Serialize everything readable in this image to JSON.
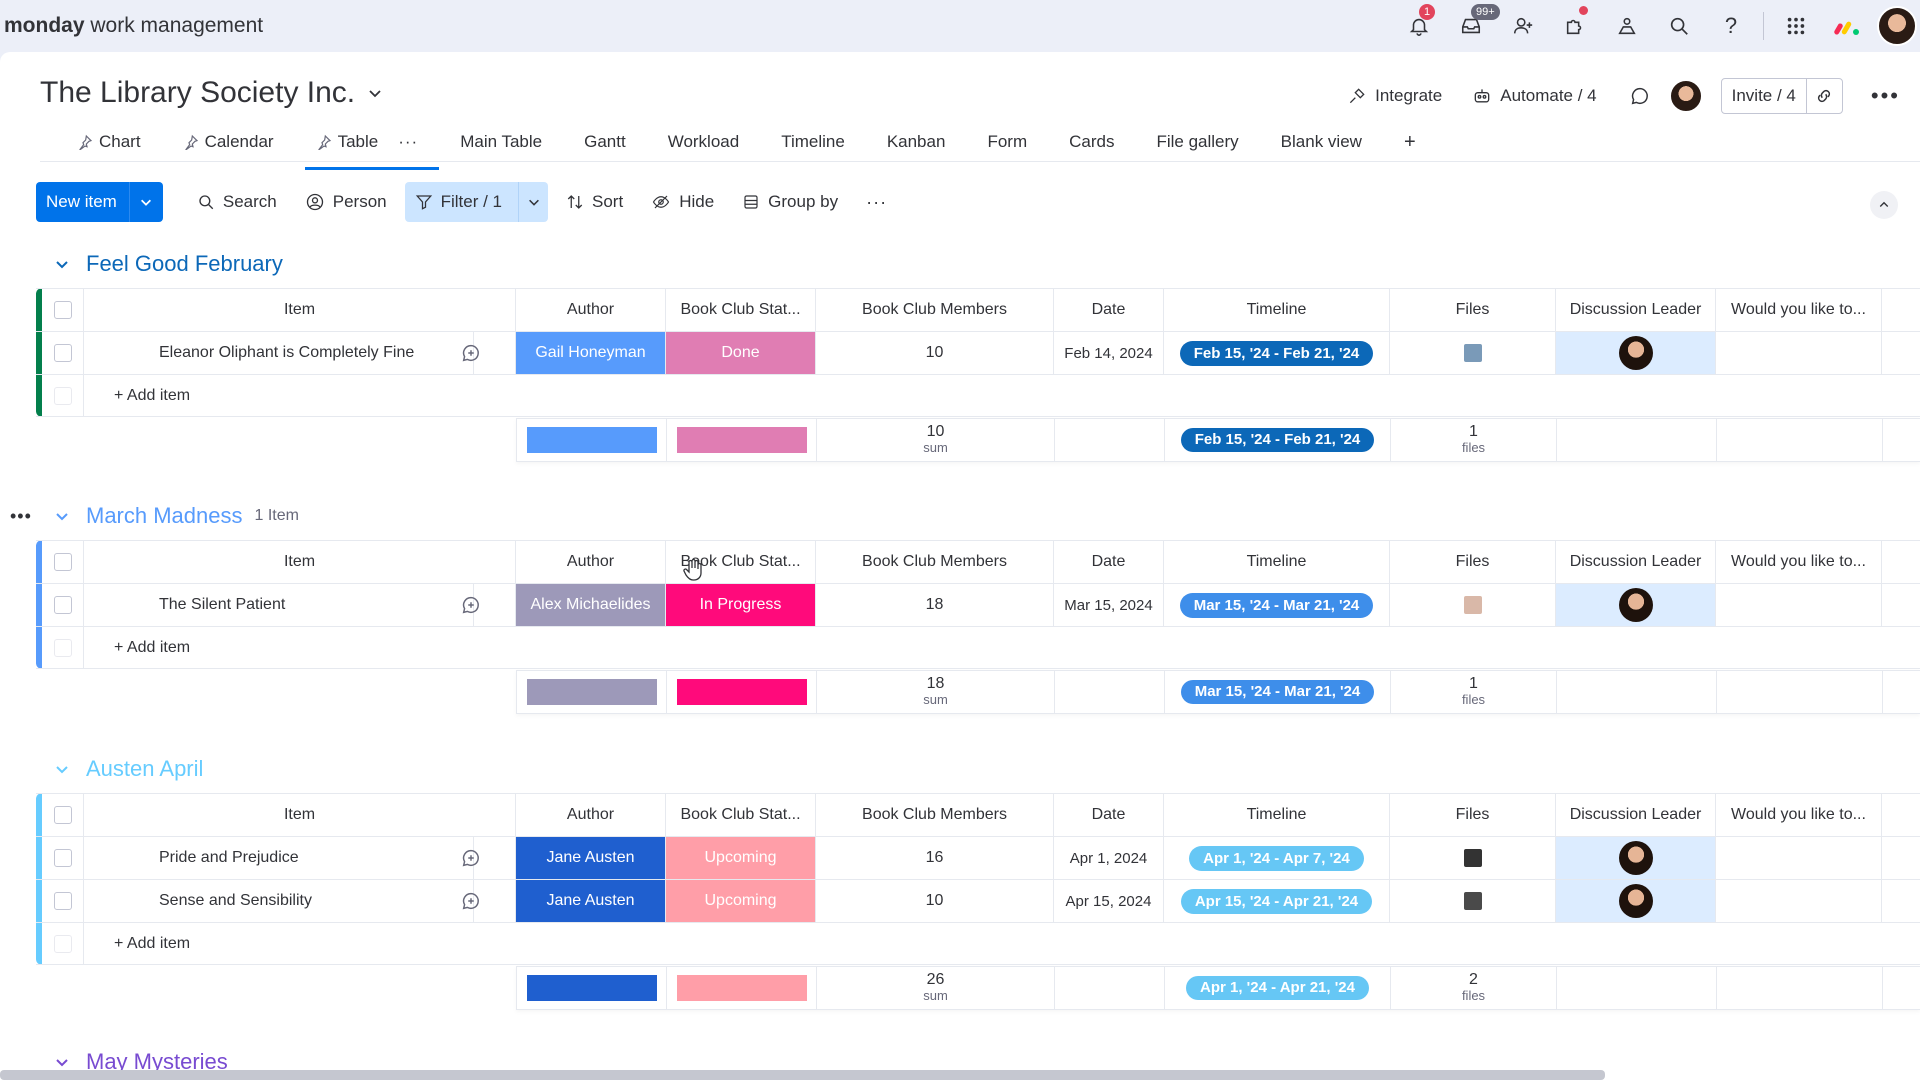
{
  "app": {
    "brand_bold": "monday",
    "brand_rest": "work management"
  },
  "topbar": {
    "notif_badge": "1",
    "inbox_badge": "99+"
  },
  "board": {
    "title": "The Library Society Inc.",
    "integrate": "Integrate",
    "automate": "Automate / 4",
    "invite": "Invite / 4"
  },
  "tabs": [
    {
      "label": "Chart"
    },
    {
      "label": "Calendar"
    },
    {
      "label": "Table"
    },
    {
      "label": "Main Table"
    },
    {
      "label": "Gantt"
    },
    {
      "label": "Workload"
    },
    {
      "label": "Timeline"
    },
    {
      "label": "Kanban"
    },
    {
      "label": "Form"
    },
    {
      "label": "Cards"
    },
    {
      "label": "File gallery"
    },
    {
      "label": "Blank view"
    }
  ],
  "toolbar": {
    "new_item": "New item",
    "search": "Search",
    "person": "Person",
    "filter": "Filter / 1",
    "sort": "Sort",
    "hide": "Hide",
    "group_by": "Group by"
  },
  "columns": [
    "Item",
    "Author",
    "Book Club Stat...",
    "Book Club Members",
    "Date",
    "Timeline",
    "Files",
    "Discussion Leader",
    "Would you like to..."
  ],
  "add_item": "+ Add item",
  "groups": [
    {
      "title": "Feel Good February",
      "count": "",
      "color": "#037f4c",
      "title_color": "#0c68b8",
      "rows": [
        {
          "item": "Eleanor Oliphant is Completely Fine",
          "author": "Gail Honeyman",
          "author_color": "#579bfc",
          "status": "Done",
          "status_color": "#e07db3",
          "members": "10",
          "date": "Feb 14, 2024",
          "timeline": "Feb 15, '24 - Feb 21, '24",
          "timeline_color": "#0c68b8",
          "thumb": "#7a9ab8"
        }
      ],
      "footer": {
        "author_color": "#579bfc",
        "status_color": "#e07db3",
        "sum": "10",
        "sum_label": "sum",
        "timeline": "Feb 15, '24 - Feb 21, '24",
        "timeline_color": "#0c68b8",
        "files": "1",
        "files_label": "files"
      }
    },
    {
      "title": "March Madness",
      "count": "1 Item",
      "color": "#579bfc",
      "title_color": "#579bfc",
      "rows": [
        {
          "item": "The Silent Patient",
          "author": "Alex Michaelides",
          "author_color": "#9d99b9",
          "status": "In Progress",
          "status_color": "#ff0a7b",
          "members": "18",
          "date": "Mar 15, 2024",
          "timeline": "Mar 15, '24 - Mar 21, '24",
          "timeline_color": "#3e8eea",
          "thumb": "#d9b8a8"
        }
      ],
      "footer": {
        "author_color": "#9d99b9",
        "status_color": "#ff0a7b",
        "sum": "18",
        "sum_label": "sum",
        "timeline": "Mar 15, '24 - Mar 21, '24",
        "timeline_color": "#3e8eea",
        "files": "1",
        "files_label": "files"
      }
    },
    {
      "title": "Austen April",
      "count": "",
      "color": "#66ccff",
      "title_color": "#66ccff",
      "rows": [
        {
          "item": "Pride and Prejudice",
          "author": "Jane Austen",
          "author_color": "#1f5fcf",
          "status": "Upcoming",
          "status_color": "#ff9ea8",
          "members": "16",
          "date": "Apr 1, 2024",
          "timeline": "Apr 1, '24 - Apr 7, '24",
          "timeline_color": "#66c7f5",
          "thumb": "#333333"
        },
        {
          "item": "Sense and Sensibility",
          "author": "Jane Austen",
          "author_color": "#1f5fcf",
          "status": "Upcoming",
          "status_color": "#ff9ea8",
          "members": "10",
          "date": "Apr 15, 2024",
          "timeline": "Apr 15, '24 - Apr 21, '24",
          "timeline_color": "#66c7f5",
          "thumb": "#4a4a4a"
        }
      ],
      "footer": {
        "author_color": "#1f5fcf",
        "status_color": "#ff9ea8",
        "sum": "26",
        "sum_label": "sum",
        "timeline": "Apr 1, '24 - Apr 21, '24",
        "timeline_color": "#66c7f5",
        "files": "2",
        "files_label": "files"
      }
    },
    {
      "title": "May Mysteries",
      "count": "",
      "color": "#784bd1",
      "title_color": "#784bd1",
      "rows": []
    }
  ]
}
